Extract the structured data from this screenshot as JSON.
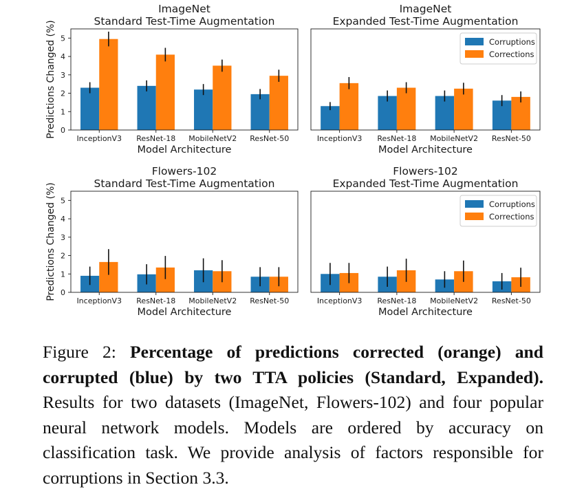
{
  "colors": {
    "corruptions": "#1f77b4",
    "corrections": "#ff7f0e",
    "error_bar": "#111111"
  },
  "chart_data": [
    {
      "type": "bar",
      "title": "ImageNet",
      "subtitle": "Standard Test-Time Augmentation",
      "xlabel": "Model Architecture",
      "ylabel": "Predictions Changed (%)",
      "ylim": [
        0,
        5.5
      ],
      "yticks": [
        "0",
        "1",
        "2",
        "3",
        "4",
        "5"
      ],
      "categories": [
        "InceptionV3",
        "ResNet-18",
        "MobileNetV2",
        "ResNet-50"
      ],
      "legend": false,
      "series": [
        {
          "key": "corruptions",
          "values": [
            2.3,
            2.4,
            2.2,
            1.95
          ],
          "errors": [
            0.3,
            0.3,
            0.3,
            0.28
          ]
        },
        {
          "key": "corrections",
          "values": [
            4.95,
            4.1,
            3.5,
            2.95
          ],
          "errors": [
            0.4,
            0.37,
            0.33,
            0.33
          ]
        }
      ]
    },
    {
      "type": "bar",
      "title": "ImageNet",
      "subtitle": "Expanded Test-Time Augmentation",
      "xlabel": "Model Architecture",
      "ylabel": "",
      "ylim": [
        0,
        5.5
      ],
      "categories": [
        "InceptionV3",
        "ResNet-18",
        "MobileNetV2",
        "ResNet-50"
      ],
      "legend": true,
      "legend_position": "top-right",
      "series": [
        {
          "name": "Corruptions",
          "key": "corruptions",
          "values": [
            1.3,
            1.85,
            1.85,
            1.6
          ],
          "errors": [
            0.22,
            0.3,
            0.3,
            0.3
          ]
        },
        {
          "name": "Corrections",
          "key": "corrections",
          "values": [
            2.55,
            2.3,
            2.25,
            1.8
          ],
          "errors": [
            0.33,
            0.3,
            0.32,
            0.3
          ]
        }
      ]
    },
    {
      "type": "bar",
      "title": "Flowers-102",
      "subtitle": "Standard Test-Time Augmentation",
      "xlabel": "Model Architecture",
      "ylabel": "Predictions Changed (%)",
      "ylim": [
        0,
        5.5
      ],
      "yticks": [
        "0",
        "1",
        "2",
        "3",
        "4",
        "5"
      ],
      "categories": [
        "InceptionV3",
        "ResNet-18",
        "MobileNetV2",
        "ResNet-50"
      ],
      "legend": false,
      "series": [
        {
          "key": "corruptions",
          "values": [
            0.9,
            0.98,
            1.2,
            0.85
          ],
          "errors": [
            0.5,
            0.55,
            0.65,
            0.52
          ]
        },
        {
          "key": "corrections",
          "values": [
            1.65,
            1.35,
            1.15,
            0.85
          ],
          "errors": [
            0.7,
            0.63,
            0.6,
            0.52
          ]
        }
      ]
    },
    {
      "type": "bar",
      "title": "Flowers-102",
      "subtitle": "Expanded Test-Time Augmentation",
      "xlabel": "Model Architecture",
      "ylabel": "",
      "ylim": [
        0,
        5.5
      ],
      "categories": [
        "InceptionV3",
        "ResNet-18",
        "MobileNetV2",
        "ResNet-50"
      ],
      "legend": true,
      "legend_position": "top-right",
      "series": [
        {
          "name": "Corruptions",
          "key": "corruptions",
          "values": [
            1.0,
            0.85,
            0.7,
            0.6
          ],
          "errors": [
            0.6,
            0.55,
            0.45,
            0.45
          ]
        },
        {
          "name": "Corrections",
          "key": "corrections",
          "values": [
            1.05,
            1.2,
            1.15,
            0.82
          ],
          "errors": [
            0.55,
            0.63,
            0.58,
            0.52
          ]
        }
      ]
    }
  ],
  "caption": {
    "label": "Figure 2:",
    "bold": "Percentage of predictions corrected (orange) and corrupted (blue) by two TTA policies (Standard, Expanded).",
    "text": "Results for two datasets (ImageNet, Flowers-102) and four popular neural network models. Models are ordered by accuracy on classification task. We provide analysis of factors responsible for corruptions in Section 3.3."
  }
}
